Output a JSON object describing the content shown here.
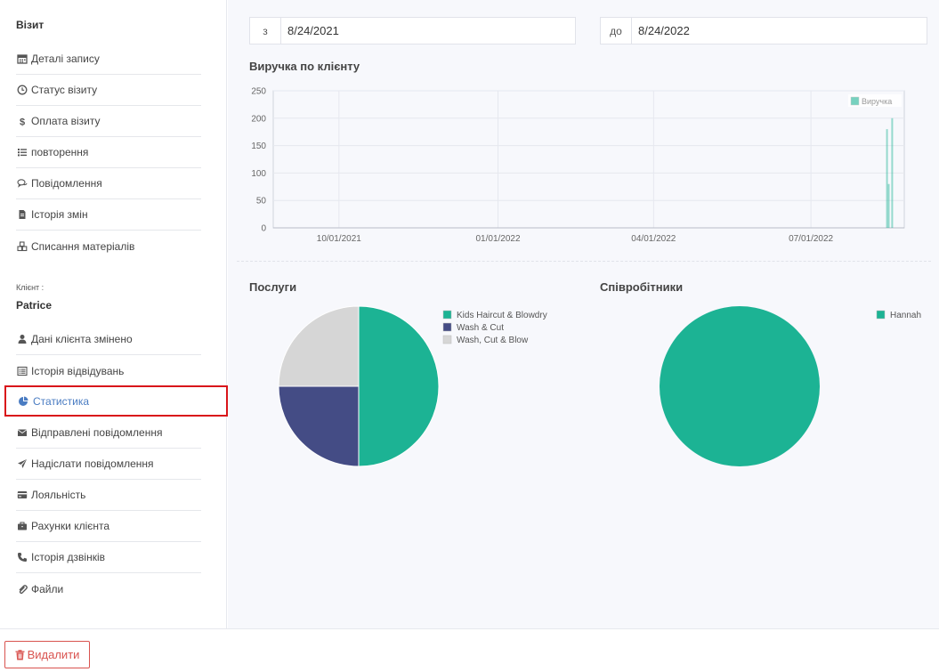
{
  "sidebar": {
    "visit_title": "Візит",
    "visit_items": [
      {
        "label": "Деталі запису",
        "icon": "calendar-icon"
      },
      {
        "label": "Статус візиту",
        "icon": "clock-icon"
      },
      {
        "label": "Оплата візиту",
        "icon": "dollar-icon"
      },
      {
        "label": "повторення",
        "icon": "list-icon"
      },
      {
        "label": "Повідомлення",
        "icon": "comments-icon"
      },
      {
        "label": "Історія змін",
        "icon": "file-icon"
      },
      {
        "label": "Списання матеріалів",
        "icon": "cubes-icon"
      }
    ],
    "client_label": "Клієнт :",
    "client_name": "Patrice",
    "client_items": [
      {
        "label": "Дані клієнта змінено",
        "icon": "user-icon"
      },
      {
        "label": "Історія відвідувань",
        "icon": "list-alt-icon"
      }
    ],
    "active_item": {
      "label": "Статистика",
      "icon": "pie-chart-icon"
    },
    "client_items_2": [
      {
        "label": "Відправлені повідомлення",
        "icon": "envelope-icon"
      },
      {
        "label": "Надіслати повідомлення",
        "icon": "paper-plane-icon"
      },
      {
        "label": "Лояльність",
        "icon": "credit-card-icon"
      },
      {
        "label": "Рахунки клієнта",
        "icon": "briefcase-icon"
      },
      {
        "label": "Історія дзвінків",
        "icon": "phone-icon"
      },
      {
        "label": "Файли",
        "icon": "paperclip-icon"
      }
    ]
  },
  "filters": {
    "from_prefix": "з",
    "from_value": "8/24/2021",
    "to_prefix": "до",
    "to_value": "8/24/2022"
  },
  "revenue_section": {
    "title": "Виручка по клієнту"
  },
  "services_section": {
    "title": "Послуги"
  },
  "staff_section": {
    "title": "Співробітники"
  },
  "delete_button": {
    "label": "Видалити",
    "color": "#d9534f"
  },
  "colors": {
    "teal": "#1cb394",
    "navy": "#444c85",
    "gray": "#d6d6d6",
    "active_border": "#d9141a",
    "active_text": "#4a7cc2"
  },
  "chart_data": [
    {
      "type": "bar",
      "title": "Виручка по клієнту",
      "x_ticks": [
        "10/01/2021",
        "01/01/2022",
        "04/01/2022",
        "07/01/2022"
      ],
      "y_ticks": [
        "0",
        "50",
        "100",
        "150",
        "200",
        "250"
      ],
      "ylim": [
        0,
        250
      ],
      "xlim": [
        "2021-08-24",
        "2022-08-24"
      ],
      "legend_position": "top-right",
      "series": [
        {
          "name": "Виручка",
          "color": "#1cb394",
          "points": [
            {
              "x": "2022-08-14",
              "y": 180
            },
            {
              "x": "2022-08-15",
              "y": 80
            },
            {
              "x": "2022-08-17",
              "y": 200
            }
          ]
        }
      ]
    },
    {
      "type": "pie",
      "title": "Послуги",
      "legend_position": "top-right",
      "slices": [
        {
          "label": "Kids Haircut & Blowdry",
          "value": 2,
          "color": "#1cb394"
        },
        {
          "label": "Wash & Cut",
          "value": 1,
          "color": "#444c85"
        },
        {
          "label": "Wash, Cut & Blow",
          "value": 1,
          "color": "#d6d6d6"
        }
      ]
    },
    {
      "type": "pie",
      "title": "Співробітники",
      "legend_position": "top-right",
      "slices": [
        {
          "label": "Hannah",
          "value": 1,
          "color": "#1cb394"
        }
      ]
    }
  ]
}
